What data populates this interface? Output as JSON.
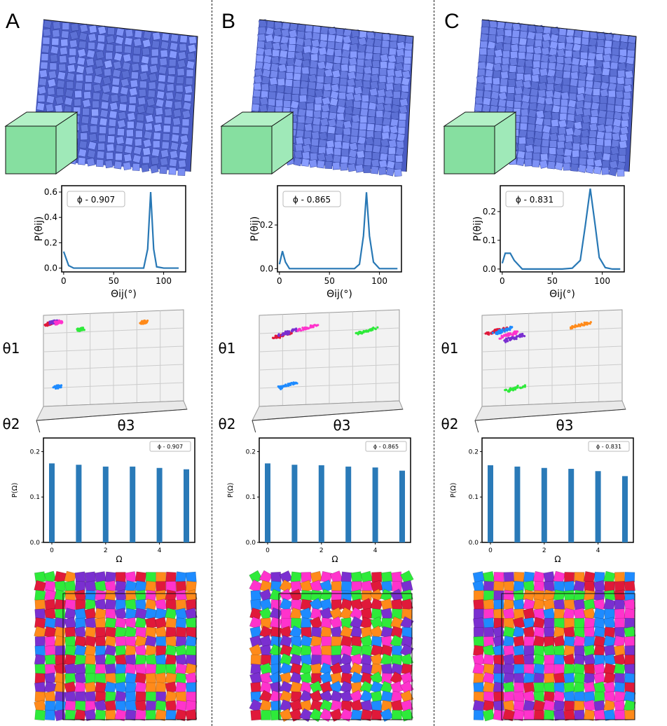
{
  "panels": [
    {
      "letter": "A",
      "phi_label": "ϕ - 0.907",
      "colors": {
        "cubes": "#5b6fd6",
        "shape": "#8ee6a8"
      },
      "chart_data": [
        {
          "type": "line",
          "x": [
            0,
            5,
            10,
            20,
            30,
            40,
            50,
            60,
            70,
            80,
            84,
            87,
            90,
            93,
            100,
            110,
            115
          ],
          "series": [
            {
              "values": [
                0.13,
                0.02,
                0.0,
                0.0,
                0.0,
                0.0,
                0.0,
                0.0,
                0.0,
                0.0,
                0.15,
                0.6,
                0.15,
                0.01,
                0.0,
                0.0,
                0.0
              ]
            }
          ],
          "xlabel": "Θij(°)",
          "ylabel": "P(θij)",
          "xticks": [
            0,
            50,
            100
          ],
          "yticks": [
            0.0,
            0.2,
            0.4,
            0.6
          ],
          "ylim": [
            -0.03,
            0.65
          ]
        },
        {
          "type": "bar",
          "categories": [
            0,
            1,
            2,
            3,
            4,
            5
          ],
          "series": [
            {
              "values": [
                0.174,
                0.171,
                0.167,
                0.167,
                0.164,
                0.161
              ]
            }
          ],
          "xlabel": "Ω",
          "ylabel": "P(Ω)",
          "xticks": [
            0,
            2,
            4
          ],
          "yticks": [
            0.0,
            0.1,
            0.2
          ],
          "ylim": [
            0,
            0.23
          ]
        }
      ],
      "scatter_axes": {
        "t1": "θ1",
        "t2": "θ2",
        "t3": "θ3"
      }
    },
    {
      "letter": "B",
      "phi_label": "ϕ - 0.865",
      "colors": {
        "cubes": "#5b6fd6",
        "shape": "#8ee6a8"
      },
      "chart_data": [
        {
          "type": "line",
          "x": [
            0,
            3,
            6,
            10,
            20,
            40,
            60,
            75,
            80,
            84,
            87,
            90,
            94,
            100,
            110,
            118
          ],
          "series": [
            {
              "values": [
                0.02,
                0.08,
                0.03,
                0.0,
                0.0,
                0.0,
                0.0,
                0.0,
                0.02,
                0.15,
                0.35,
                0.15,
                0.03,
                0.0,
                0.0,
                0.0
              ]
            }
          ],
          "xlabel": "Θij(°)",
          "ylabel": "P(θij)",
          "xticks": [
            0,
            50,
            100
          ],
          "yticks": [
            0.0,
            0.2
          ],
          "ylim": [
            -0.015,
            0.38
          ]
        },
        {
          "type": "bar",
          "categories": [
            0,
            1,
            2,
            3,
            4,
            5
          ],
          "series": [
            {
              "values": [
                0.174,
                0.171,
                0.17,
                0.167,
                0.165,
                0.158
              ]
            }
          ],
          "xlabel": "Ω",
          "ylabel": "P(Ω)",
          "xticks": [
            0,
            2,
            4
          ],
          "yticks": [
            0.0,
            0.1,
            0.2
          ],
          "ylim": [
            0,
            0.23
          ]
        }
      ],
      "scatter_axes": {
        "t1": "θ1",
        "t2": "θ2",
        "t3": "θ3"
      }
    },
    {
      "letter": "C",
      "phi_label": "ϕ - 0.831",
      "colors": {
        "cubes": "#5b6fd6",
        "shape": "#8ee6a8"
      },
      "chart_data": [
        {
          "type": "line",
          "x": [
            0,
            3,
            8,
            12,
            20,
            40,
            60,
            70,
            78,
            83,
            88,
            93,
            97,
            103,
            110,
            118
          ],
          "series": [
            {
              "values": [
                0.02,
                0.055,
                0.055,
                0.03,
                0.0,
                0.0,
                0.0,
                0.003,
                0.03,
                0.15,
                0.28,
                0.15,
                0.04,
                0.005,
                0.0,
                0.0
              ]
            }
          ],
          "xlabel": "Θij(°)",
          "ylabel": "P(θij)",
          "xticks": [
            0,
            50,
            100
          ],
          "yticks": [
            0.0,
            0.1,
            0.2
          ],
          "ylim": [
            -0.01,
            0.29
          ]
        },
        {
          "type": "bar",
          "categories": [
            0,
            1,
            2,
            3,
            4,
            5
          ],
          "series": [
            {
              "values": [
                0.17,
                0.167,
                0.164,
                0.162,
                0.157,
                0.146
              ]
            }
          ],
          "xlabel": "Ω",
          "ylabel": "P(Ω)",
          "xticks": [
            0,
            2,
            4
          ],
          "yticks": [
            0.0,
            0.1,
            0.2
          ],
          "ylim": [
            0,
            0.23
          ]
        }
      ],
      "scatter_axes": {
        "t1": "θ1",
        "t2": "θ2",
        "t3": "θ3"
      }
    }
  ],
  "cluster_colors": [
    "#e0193a",
    "#7a2fd0",
    "#ff33cc",
    "#1e8bff",
    "#2eea3a",
    "#ff8a1a"
  ]
}
